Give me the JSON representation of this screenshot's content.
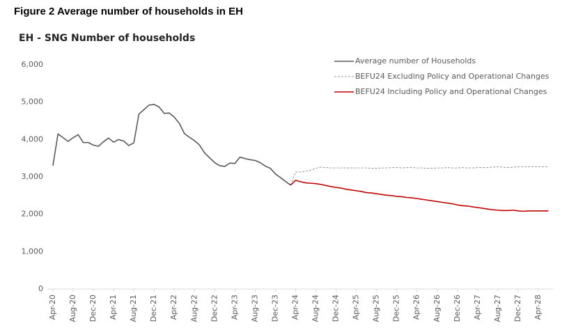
{
  "chart_data": {
    "type": "line",
    "title": "Figure 2 Average number of households in EH",
    "subtitle": "EH - SNG Number of households",
    "categories": [
      "Apr-20",
      null,
      null,
      null,
      "Aug-20",
      null,
      null,
      null,
      "Dec-20",
      null,
      null,
      null,
      "Apr-21",
      null,
      null,
      null,
      "Aug-21",
      null,
      null,
      null,
      "Dec-21",
      null,
      null,
      null,
      "Apr-22",
      null,
      null,
      null,
      "Aug-22",
      null,
      null,
      null,
      "Dec-22",
      null,
      null,
      null,
      "Apr-23",
      null,
      null,
      null,
      "Aug-23",
      null,
      null,
      null,
      "Dec-23",
      null,
      null,
      null,
      "Apr-24",
      null,
      null,
      null,
      "Aug-24",
      null,
      null,
      null,
      "Dec-24",
      null,
      null,
      null,
      "Apr-25",
      null,
      null,
      null,
      "Aug-25",
      null,
      null,
      null,
      "Dec-25",
      null,
      null,
      null,
      "Apr-26",
      null,
      null,
      null,
      "Aug-26",
      null,
      null,
      null,
      "Dec-26",
      null,
      null,
      null,
      "Apr-27",
      null,
      null,
      null,
      "Aug-27",
      null,
      null,
      null,
      "Dec-27",
      null,
      null,
      null,
      "Apr-28",
      null,
      null
    ],
    "series": [
      {
        "name": "Average number of Households",
        "color": "#595959",
        "style": "solid",
        "values": [
          3300,
          4150,
          4050,
          3950,
          4050,
          4130,
          3920,
          3920,
          3850,
          3820,
          3940,
          4040,
          3930,
          4000,
          3960,
          3840,
          3910,
          4680,
          4800,
          4920,
          4940,
          4870,
          4700,
          4710,
          4600,
          4430,
          4160,
          4060,
          3970,
          3850,
          3640,
          3510,
          3380,
          3300,
          3280,
          3370,
          3360,
          3530,
          3490,
          3460,
          3440,
          3380,
          3290,
          3230,
          3080,
          2980,
          2880,
          2780,
          null,
          null,
          null,
          null,
          null,
          null,
          null,
          null,
          null,
          null,
          null,
          null,
          null,
          null,
          null,
          null,
          null,
          null,
          null,
          null,
          null,
          null,
          null,
          null,
          null,
          null,
          null,
          null,
          null,
          null,
          null,
          null,
          null,
          null,
          null,
          null,
          null,
          null,
          null,
          null,
          null,
          null,
          null,
          null,
          null,
          null,
          null,
          null,
          null,
          null,
          null
        ]
      },
      {
        "name": "BEFU24 Excluding Policy and Operational Changes",
        "color": "#999999",
        "style": "dashed",
        "values": [
          null,
          null,
          null,
          null,
          null,
          null,
          null,
          null,
          null,
          null,
          null,
          null,
          null,
          null,
          null,
          null,
          null,
          null,
          null,
          null,
          null,
          null,
          null,
          null,
          null,
          null,
          null,
          null,
          null,
          null,
          null,
          null,
          null,
          null,
          null,
          null,
          null,
          null,
          null,
          null,
          null,
          null,
          null,
          null,
          null,
          null,
          null,
          2780,
          3130,
          3130,
          3150,
          3180,
          3230,
          3260,
          3250,
          3240,
          3240,
          3240,
          3240,
          3240,
          3240,
          3240,
          3240,
          3230,
          3230,
          3240,
          3240,
          3250,
          3250,
          3240,
          3250,
          3250,
          3240,
          3240,
          3230,
          3230,
          3240,
          3240,
          3250,
          3240,
          3240,
          3250,
          3240,
          3240,
          3250,
          3250,
          3250,
          3260,
          3270,
          3260,
          3250,
          3260,
          3270,
          3270,
          3270,
          3270,
          3270,
          3270,
          3270
        ]
      },
      {
        "name": "BEFU24 Including Policy and Operational Changes",
        "color": "#c00000",
        "style": "solid",
        "values": [
          null,
          null,
          null,
          null,
          null,
          null,
          null,
          null,
          null,
          null,
          null,
          null,
          null,
          null,
          null,
          null,
          null,
          null,
          null,
          null,
          null,
          null,
          null,
          null,
          null,
          null,
          null,
          null,
          null,
          null,
          null,
          null,
          null,
          null,
          null,
          null,
          null,
          null,
          null,
          null,
          null,
          null,
          null,
          null,
          null,
          null,
          null,
          2780,
          2910,
          2870,
          2840,
          2830,
          2820,
          2800,
          2770,
          2740,
          2720,
          2700,
          2670,
          2650,
          2630,
          2610,
          2580,
          2570,
          2550,
          2530,
          2510,
          2500,
          2480,
          2470,
          2450,
          2440,
          2420,
          2400,
          2380,
          2360,
          2340,
          2320,
          2300,
          2280,
          2250,
          2230,
          2220,
          2200,
          2180,
          2160,
          2140,
          2120,
          2110,
          2100,
          2100,
          2110,
          2090,
          2080,
          2090,
          2090,
          2090,
          2090,
          2090
        ]
      }
    ],
    "ylim": [
      0,
      6000
    ],
    "yticks": [
      0,
      {
        "value": 1000,
        "label": "1,000"
      },
      {
        "value": 2000,
        "label": "2,000"
      },
      {
        "value": 3000,
        "label": "3,000"
      },
      {
        "value": 4000,
        "label": "4,000"
      },
      {
        "value": 5000,
        "label": "5,000"
      },
      {
        "value": 6000,
        "label": "6,000"
      }
    ],
    "grid": false,
    "legend": "top-right"
  }
}
